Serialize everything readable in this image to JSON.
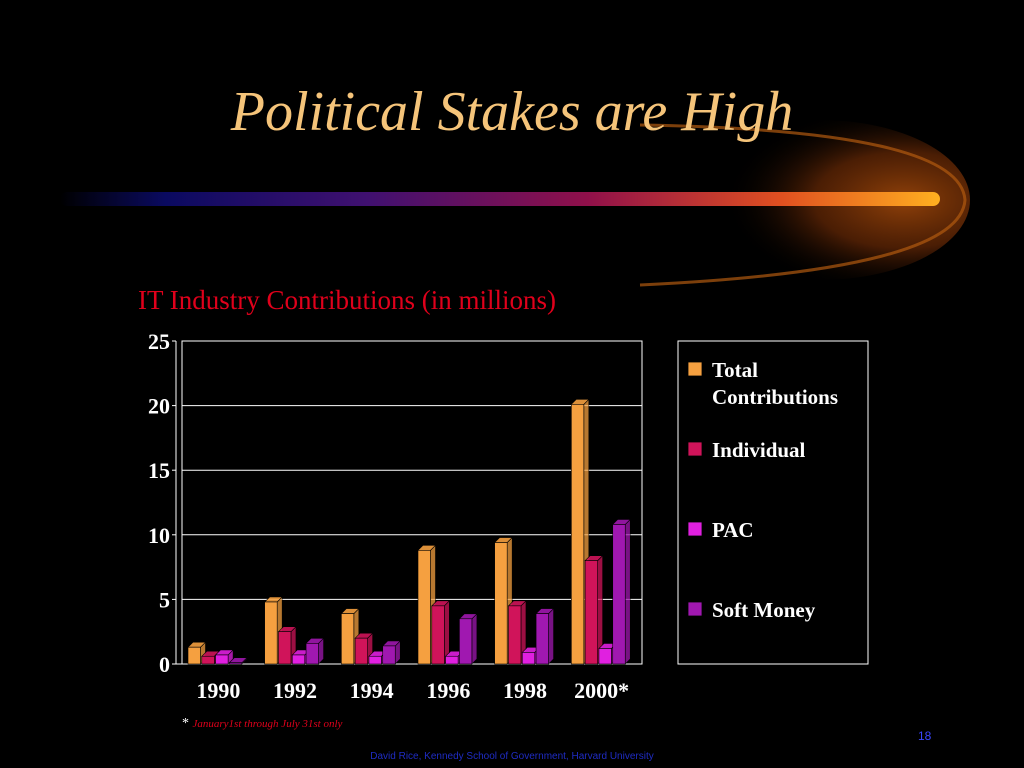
{
  "slide": {
    "title": "Political Stakes are High",
    "footnote_star": "*",
    "footnote_text": "January1st through July 31st only",
    "footer": "David Rice, Kennedy School of Government, Harvard University",
    "page_number": "18"
  },
  "colors": {
    "background": "#000000",
    "title": "#f5c47a",
    "chart_title": "#e0001b",
    "total": "#f5a040",
    "individual": "#d0145a",
    "pac": "#e020e0",
    "soft_money": "#a018b0"
  },
  "chart_data": {
    "type": "bar",
    "title": "IT Industry Contributions (in millions)",
    "categories": [
      "1990",
      "1992",
      "1994",
      "1996",
      "1998",
      "2000*"
    ],
    "series": [
      {
        "name": "Total Contributions",
        "values": [
          1.3,
          4.8,
          3.9,
          8.8,
          9.4,
          20.1
        ]
      },
      {
        "name": "Individual",
        "values": [
          0.6,
          2.5,
          2.0,
          4.5,
          4.5,
          8.0
        ]
      },
      {
        "name": "PAC",
        "values": [
          0.7,
          0.7,
          0.6,
          0.6,
          0.9,
          1.2
        ]
      },
      {
        "name": "Soft Money",
        "values": [
          0.1,
          1.6,
          1.4,
          3.5,
          3.9,
          10.8
        ]
      }
    ],
    "ylim": [
      0,
      25
    ],
    "yticks": [
      "0",
      "5",
      "10",
      "15",
      "20",
      "25"
    ],
    "grid": true,
    "legend_position": "right"
  }
}
